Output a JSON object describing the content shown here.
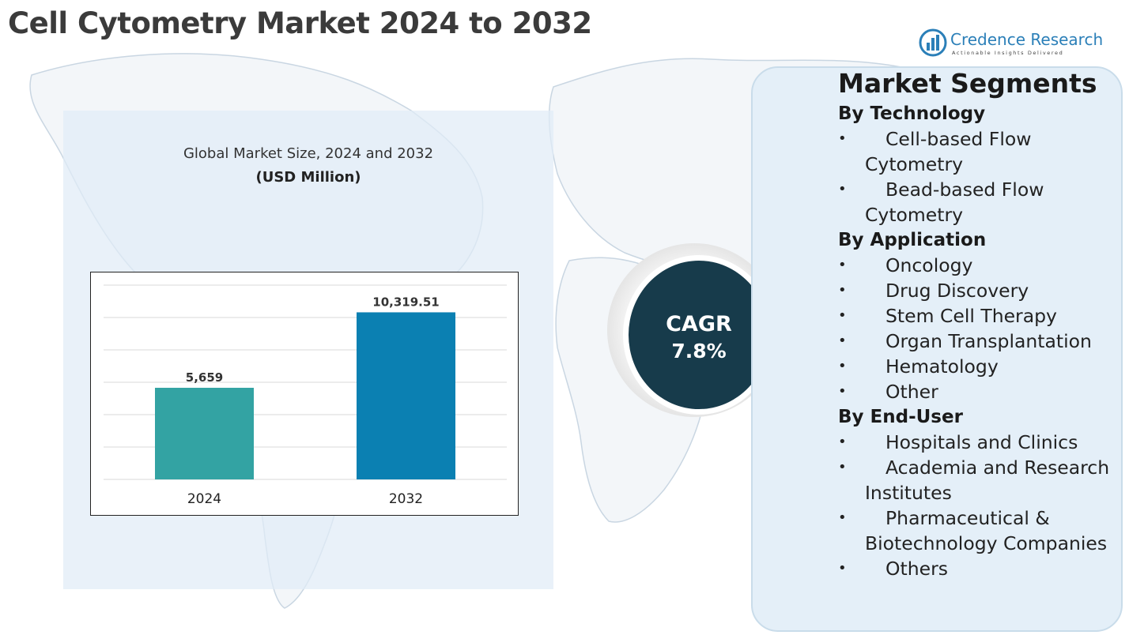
{
  "header": {
    "title": "Cell Cytometry Market 2024 to 2032"
  },
  "logo": {
    "name": "Credence Research",
    "tagline": "Actionable Insights Delivered"
  },
  "chart": {
    "title": "Global Market Size, 2024 and 2032",
    "unit": "(USD Million)"
  },
  "chart_data": {
    "type": "bar",
    "title": "Global Market Size, 2024 and 2032",
    "ylabel": "(USD Million)",
    "xlabel": "",
    "categories": [
      "2024",
      "2032"
    ],
    "values": [
      5659,
      10319.51
    ],
    "value_labels": [
      "5,659",
      "10,319.51"
    ],
    "colors": [
      "#33a3a3",
      "#0b80b2"
    ],
    "ylim": [
      0,
      12000
    ],
    "grid": true,
    "legend": "none"
  },
  "cagr": {
    "label": "CAGR",
    "value": "7.8%"
  },
  "segments": {
    "title": "Market Segments",
    "groups": [
      {
        "heading": "By Technology",
        "items": [
          "Cell-based Flow Cytometry",
          "Bead-based Flow Cytometry"
        ]
      },
      {
        "heading": "By Application",
        "items": [
          "Oncology",
          "Drug Discovery",
          "Stem Cell Therapy",
          "Organ Transplantation",
          "Hematology",
          "Other"
        ]
      },
      {
        "heading": "By End-User",
        "items": [
          "Hospitals and Clinics",
          "Academia and Research Institutes",
          "Pharmaceutical & Biotechnology Companies",
          "Others"
        ]
      }
    ]
  }
}
